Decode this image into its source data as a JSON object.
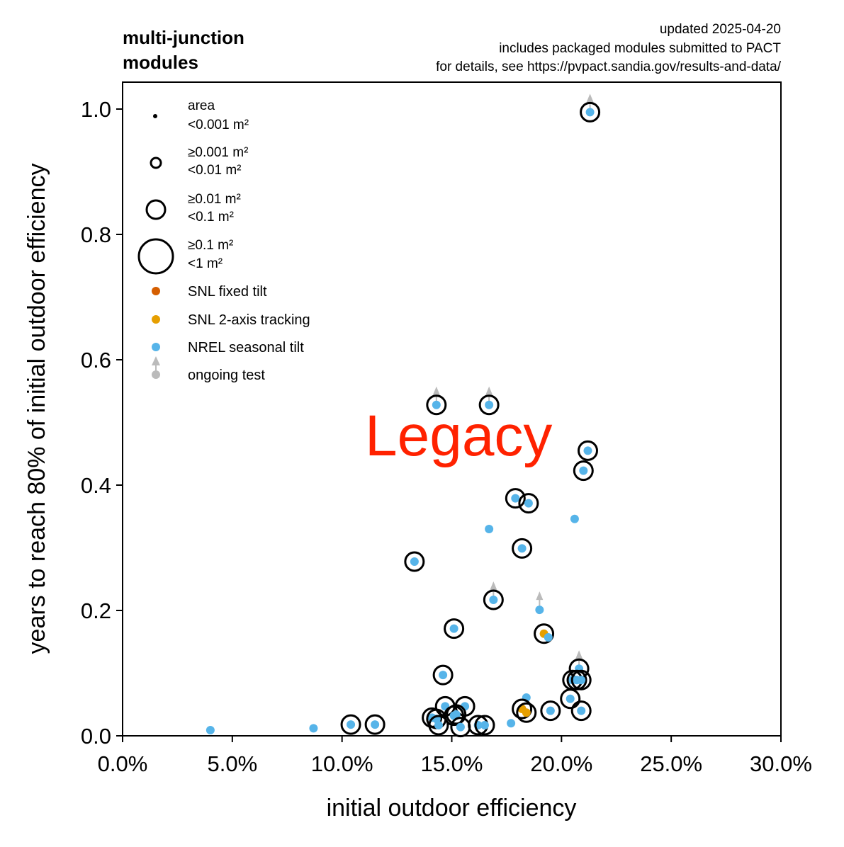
{
  "title": [
    "multi-junction",
    "modules"
  ],
  "notes": [
    "updated 2025-04-20",
    "includes packaged modules submitted to PACT",
    "for details, see https://pvpact.sandia.gov/results-and-data/"
  ],
  "watermark": "Legacy",
  "colors": {
    "snl_fixed": "#D55E00",
    "snl_2axis": "#E69F00",
    "nrel": "#56B4E9",
    "ongoing": "#BBBBBB",
    "watermark": "#FF2200"
  },
  "legend": {
    "area_title": "area",
    "area": [
      {
        "lines": [
          "<0.001 m²"
        ]
      },
      {
        "lines": [
          "≥0.001 m²",
          "<0.01 m²"
        ]
      },
      {
        "lines": [
          "≥0.01 m²",
          "<0.1 m²"
        ]
      },
      {
        "lines": [
          "≥0.1 m²",
          "<1 m²"
        ]
      }
    ],
    "series": [
      {
        "label": "SNL fixed tilt",
        "color": "#D55E00"
      },
      {
        "label": "SNL 2-axis tracking",
        "color": "#E69F00"
      },
      {
        "label": "NREL seasonal tilt",
        "color": "#56B4E9"
      },
      {
        "label": "ongoing test",
        "color": "#BBBBBB"
      }
    ]
  },
  "chart_data": {
    "type": "scatter",
    "xlabel": "initial outdoor efficiency",
    "ylabel": "years to reach 80% of initial outdoor efficiency",
    "xlim": [
      0,
      30
    ],
    "ylim": [
      0,
      1.04
    ],
    "xticks": [
      "0.0%",
      "5.0%",
      "10.0%",
      "15.0%",
      "20.0%",
      "25.0%",
      "30.0%"
    ],
    "xtick_values": [
      0,
      5,
      10,
      15,
      20,
      25,
      30
    ],
    "yticks": [
      "0.0",
      "0.2",
      "0.4",
      "0.6",
      "0.8",
      "1.0"
    ],
    "ytick_values": [
      0,
      0.2,
      0.4,
      0.6,
      0.8,
      1.0
    ],
    "grid": false,
    "legend_position": "top-left",
    "points": [
      {
        "x": 21.3,
        "y": 0.995,
        "series": "NREL seasonal tilt",
        "area": "≥0.01 m²",
        "ongoing": true
      },
      {
        "x": 14.3,
        "y": 0.528,
        "series": "NREL seasonal tilt",
        "area": "≥0.01 m²",
        "ongoing": true
      },
      {
        "x": 16.7,
        "y": 0.528,
        "series": "NREL seasonal tilt",
        "area": "≥0.01 m²",
        "ongoing": true
      },
      {
        "x": 21.2,
        "y": 0.455,
        "series": "NREL seasonal tilt",
        "area": "≥0.01 m²",
        "ongoing": false
      },
      {
        "x": 21.0,
        "y": 0.423,
        "series": "NREL seasonal tilt",
        "area": "≥0.01 m²",
        "ongoing": false
      },
      {
        "x": 17.9,
        "y": 0.379,
        "series": "NREL seasonal tilt",
        "area": "≥0.01 m²",
        "ongoing": false
      },
      {
        "x": 18.5,
        "y": 0.371,
        "series": "NREL seasonal tilt",
        "area": "≥0.01 m²",
        "ongoing": false
      },
      {
        "x": 16.7,
        "y": 0.33,
        "series": "NREL seasonal tilt",
        "area": null,
        "ongoing": false
      },
      {
        "x": 20.6,
        "y": 0.346,
        "series": "NREL seasonal tilt",
        "area": null,
        "ongoing": false
      },
      {
        "x": 18.2,
        "y": 0.299,
        "series": "NREL seasonal tilt",
        "area": "≥0.01 m²",
        "ongoing": false
      },
      {
        "x": 13.3,
        "y": 0.278,
        "series": "NREL seasonal tilt",
        "area": "≥0.01 m²",
        "ongoing": false
      },
      {
        "x": 16.9,
        "y": 0.217,
        "series": "NREL seasonal tilt",
        "area": "≥0.01 m²",
        "ongoing": true
      },
      {
        "x": 19.0,
        "y": 0.201,
        "series": "NREL seasonal tilt",
        "area": null,
        "ongoing": true
      },
      {
        "x": 15.1,
        "y": 0.171,
        "series": "NREL seasonal tilt",
        "area": "≥0.01 m²",
        "ongoing": false
      },
      {
        "x": 19.2,
        "y": 0.163,
        "series": "SNL 2-axis tracking",
        "area": "≥0.01 m²",
        "ongoing": false
      },
      {
        "x": 19.4,
        "y": 0.157,
        "series": "NREL seasonal tilt",
        "area": null,
        "ongoing": false
      },
      {
        "x": 14.6,
        "y": 0.097,
        "series": "NREL seasonal tilt",
        "area": "≥0.01 m²",
        "ongoing": false
      },
      {
        "x": 20.8,
        "y": 0.107,
        "series": "NREL seasonal tilt",
        "area": "≥0.01 m²",
        "ongoing": true
      },
      {
        "x": 20.5,
        "y": 0.089,
        "series": "NREL seasonal tilt",
        "area": "≥0.01 m²",
        "ongoing": false
      },
      {
        "x": 20.7,
        "y": 0.089,
        "series": "NREL seasonal tilt",
        "area": "≥0.01 m²",
        "ongoing": false
      },
      {
        "x": 20.9,
        "y": 0.089,
        "series": "NREL seasonal tilt",
        "area": "≥0.01 m²",
        "ongoing": false
      },
      {
        "x": 20.4,
        "y": 0.059,
        "series": "NREL seasonal tilt",
        "area": "≥0.01 m²",
        "ongoing": false
      },
      {
        "x": 20.9,
        "y": 0.04,
        "series": "NREL seasonal tilt",
        "area": "≥0.01 m²",
        "ongoing": false
      },
      {
        "x": 19.5,
        "y": 0.04,
        "series": "NREL seasonal tilt",
        "area": "≥0.01 m²",
        "ongoing": false
      },
      {
        "x": 18.4,
        "y": 0.061,
        "series": "NREL seasonal tilt",
        "area": null,
        "ongoing": false
      },
      {
        "x": 18.2,
        "y": 0.043,
        "series": "SNL 2-axis tracking",
        "area": "≥0.01 m²",
        "ongoing": false
      },
      {
        "x": 18.4,
        "y": 0.037,
        "series": "SNL 2-axis tracking",
        "area": "≥0.01 m²",
        "ongoing": false
      },
      {
        "x": 17.7,
        "y": 0.02,
        "series": "NREL seasonal tilt",
        "area": null,
        "ongoing": false
      },
      {
        "x": 15.6,
        "y": 0.047,
        "series": "NREL seasonal tilt",
        "area": "≥0.01 m²",
        "ongoing": false
      },
      {
        "x": 14.7,
        "y": 0.047,
        "series": "NREL seasonal tilt",
        "area": "≥0.01 m²",
        "ongoing": false
      },
      {
        "x": 14.1,
        "y": 0.029,
        "series": "NREL seasonal tilt",
        "area": "≥0.01 m²",
        "ongoing": false
      },
      {
        "x": 14.3,
        "y": 0.027,
        "series": "NREL seasonal tilt",
        "area": "≥0.01 m²",
        "ongoing": false
      },
      {
        "x": 15.1,
        "y": 0.032,
        "series": "NREL seasonal tilt",
        "area": "≥0.01 m²",
        "ongoing": false
      },
      {
        "x": 15.2,
        "y": 0.034,
        "series": "NREL seasonal tilt",
        "area": "≥0.01 m²",
        "ongoing": false
      },
      {
        "x": 14.4,
        "y": 0.017,
        "series": "NREL seasonal tilt",
        "area": "≥0.01 m²",
        "ongoing": false
      },
      {
        "x": 15.4,
        "y": 0.014,
        "series": "NREL seasonal tilt",
        "area": "≥0.01 m²",
        "ongoing": false
      },
      {
        "x": 16.2,
        "y": 0.017,
        "series": "NREL seasonal tilt",
        "area": "≥0.01 m²",
        "ongoing": false
      },
      {
        "x": 16.5,
        "y": 0.017,
        "series": "NREL seasonal tilt",
        "area": "≥0.01 m²",
        "ongoing": false
      },
      {
        "x": 10.4,
        "y": 0.018,
        "series": "NREL seasonal tilt",
        "area": "≥0.01 m²",
        "ongoing": false
      },
      {
        "x": 11.5,
        "y": 0.018,
        "series": "NREL seasonal tilt",
        "area": "≥0.01 m²",
        "ongoing": false
      },
      {
        "x": 8.7,
        "y": 0.012,
        "series": "NREL seasonal tilt",
        "area": null,
        "ongoing": false
      },
      {
        "x": 4.0,
        "y": 0.009,
        "series": "NREL seasonal tilt",
        "area": null,
        "ongoing": false
      }
    ]
  }
}
